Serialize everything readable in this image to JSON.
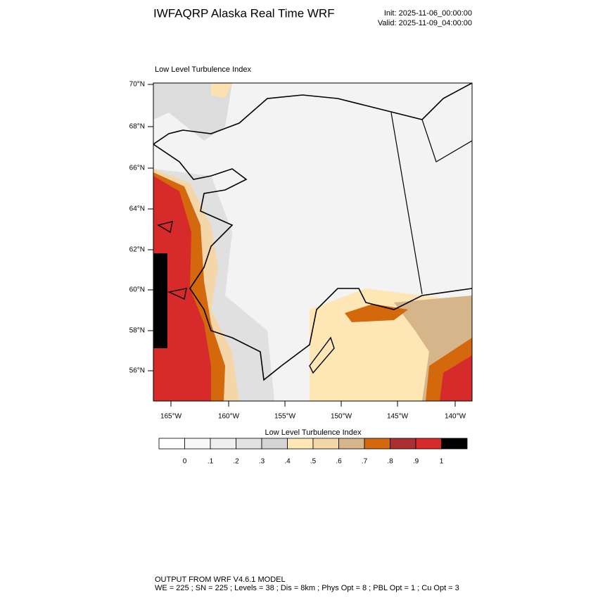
{
  "header": {
    "title": "IWFAQRP Alaska Real Time WRF",
    "init": "Init: 2025-11-06_00:00:00",
    "valid": "Valid: 2025-11-09_04:00:00"
  },
  "map": {
    "title": "Low Level Turbulence Index",
    "lat_labels": [
      "70°N",
      "68°N",
      "66°N",
      "64°N",
      "62°N",
      "60°N",
      "58°N",
      "56°N"
    ],
    "lon_labels": [
      "165°W",
      "160°W",
      "155°W",
      "150°W",
      "145°W",
      "140°W"
    ]
  },
  "colorbar": {
    "title": "Low Level Turbulence Index",
    "colors": [
      "#ffffff",
      "#f8f8f8",
      "#efefef",
      "#e2e2e2",
      "#d4d4d4",
      "#ffe6b5",
      "#f5d6a8",
      "#d7b58a",
      "#d4680c",
      "#a92f31",
      "#d72a2a",
      "#000000"
    ],
    "ticks": [
      0,
      {
        "value": 0.1,
        "label": ".1"
      },
      {
        "value": 0.2,
        "label": ".2"
      },
      {
        "value": 0.3,
        "label": ".3"
      },
      {
        "value": 0.4,
        "label": ".4"
      },
      {
        "value": 0.5,
        "label": ".5"
      },
      {
        "value": 0.6,
        "label": ".6"
      },
      {
        "value": 0.7,
        "label": ".7"
      },
      {
        "value": 0.8,
        "label": ".8"
      },
      {
        "value": 0.9,
        "label": ".9"
      },
      1
    ]
  },
  "footer": {
    "line1": "OUTPUT FROM WRF V4.6.1 MODEL",
    "line2": "WE = 225 ; SN = 225 ; Levels = 38 ; Dis = 8km ; Phys Opt = 8 ; PBL Opt = 1 ; Cu Opt = 3"
  }
}
